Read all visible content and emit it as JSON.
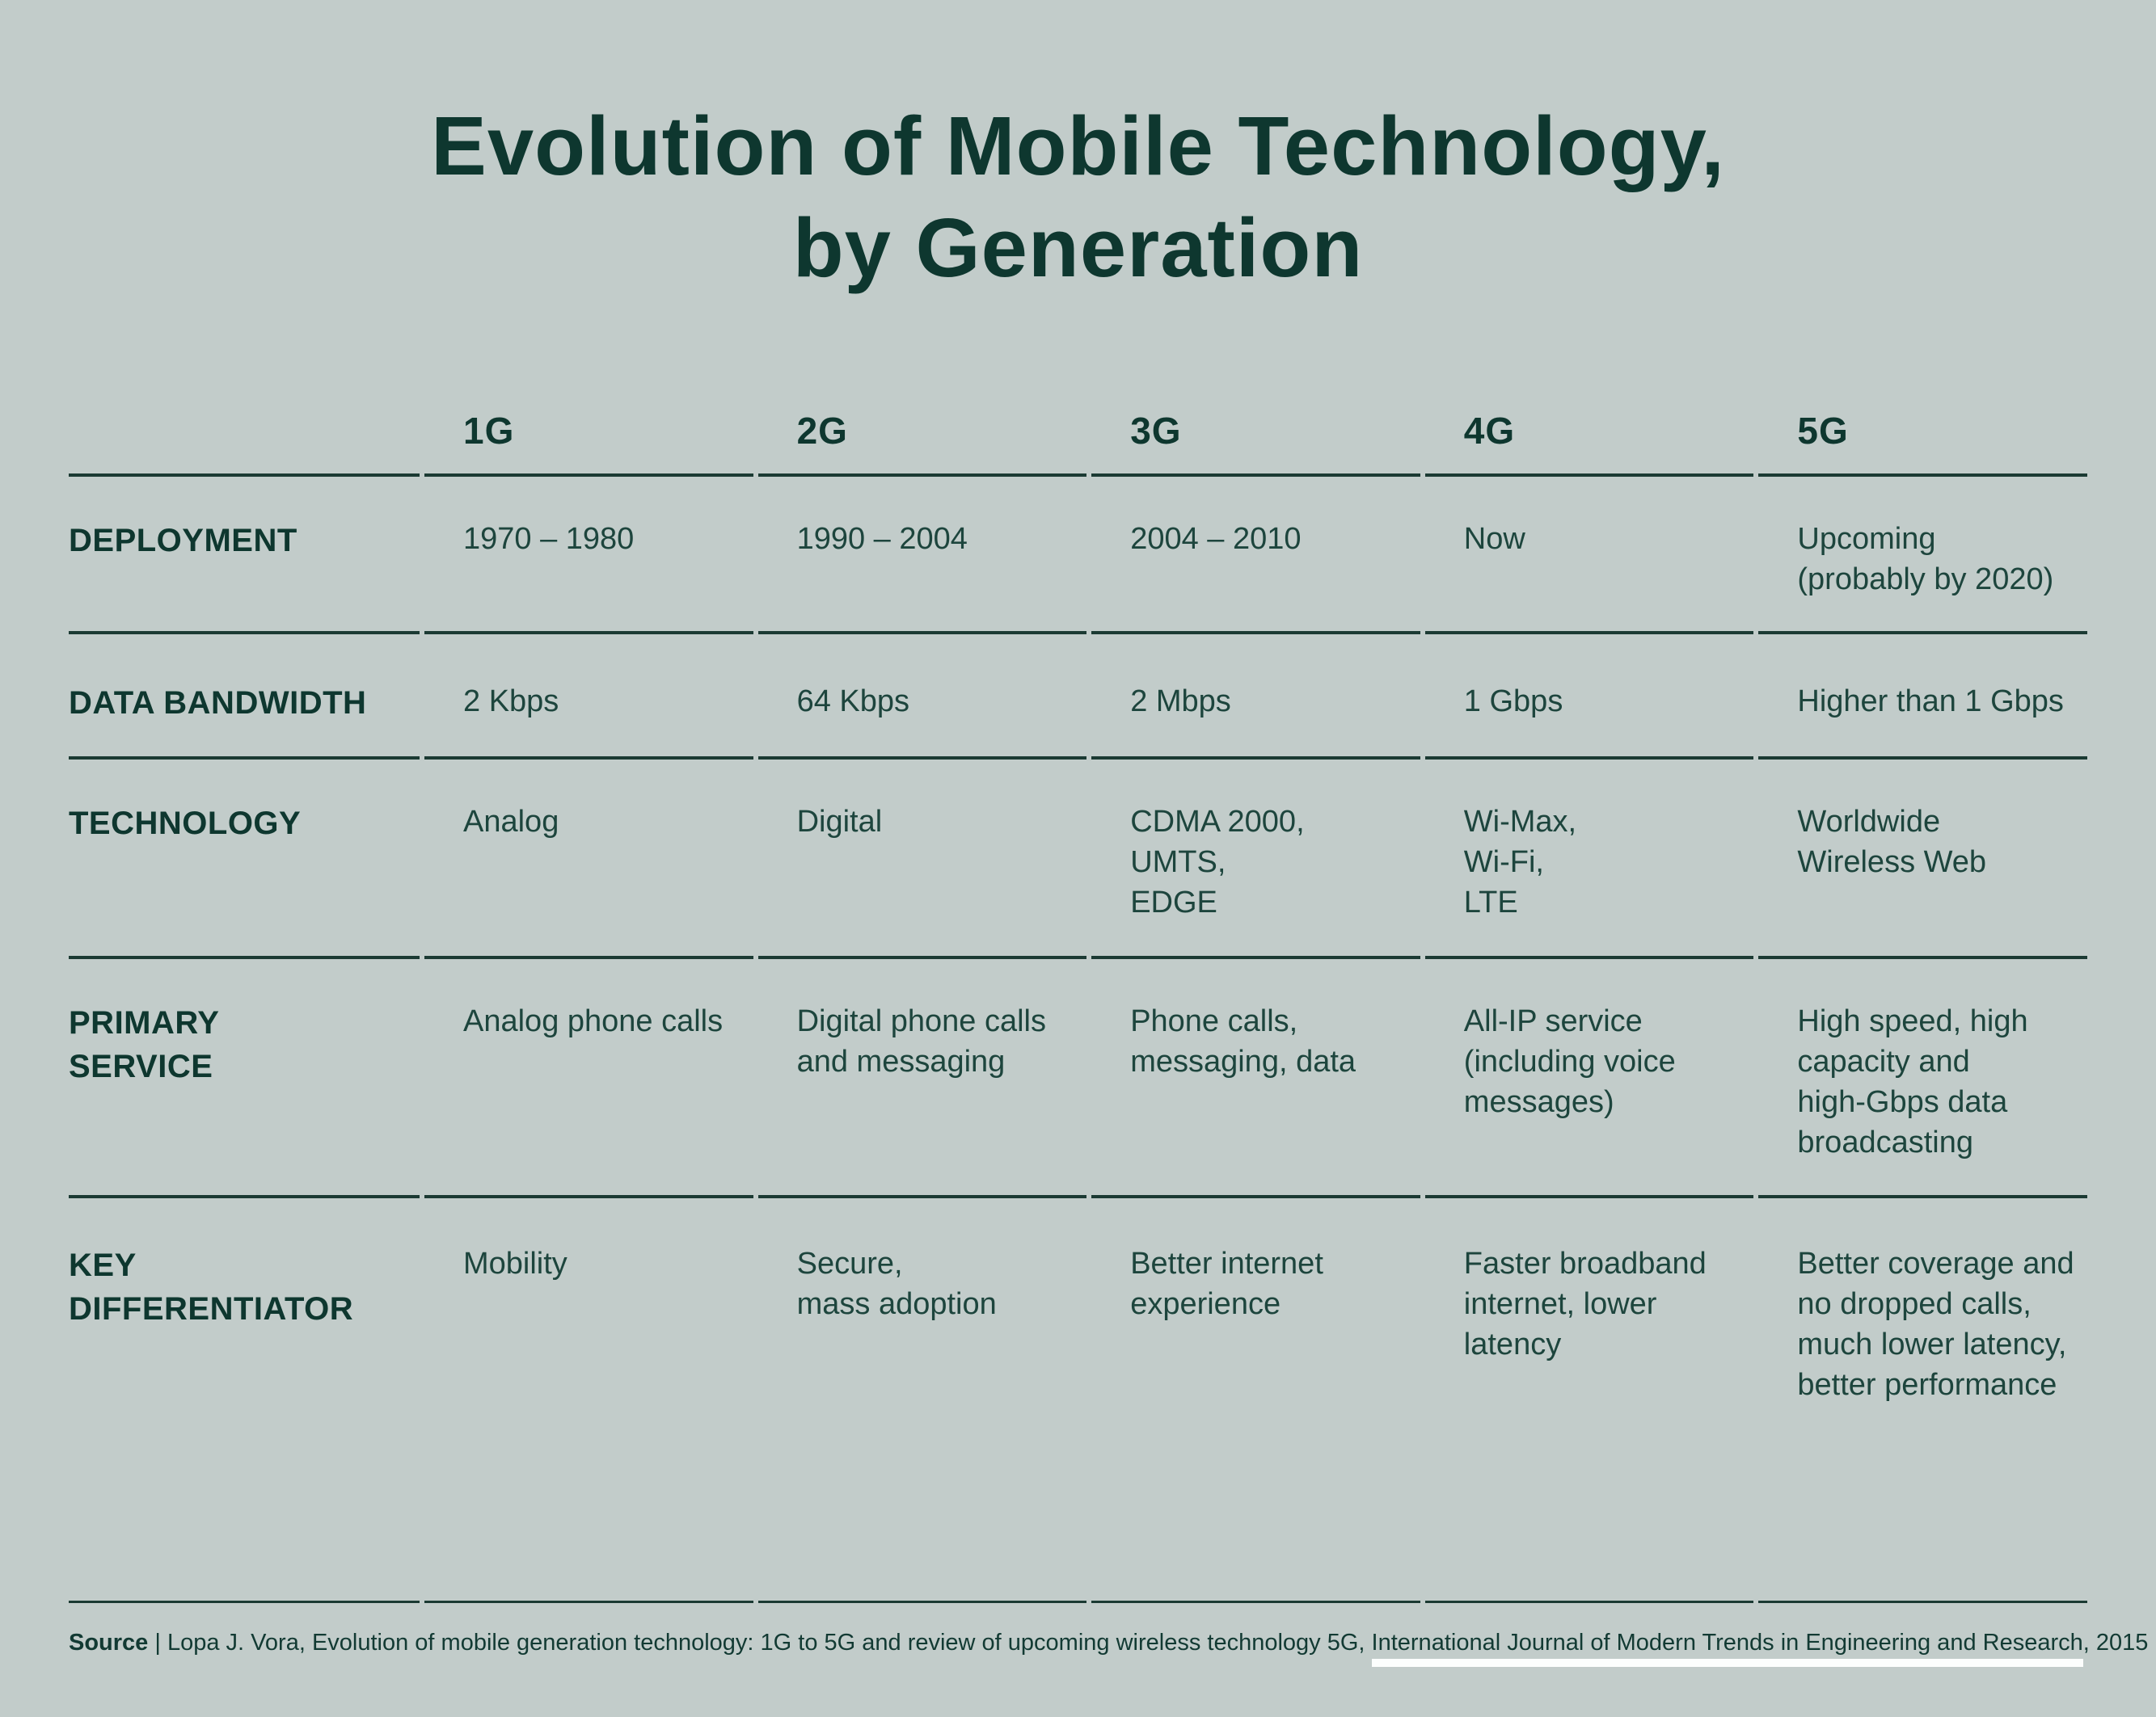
{
  "colors": {
    "background": "#c2ccca",
    "ink_dark": "#0e372f",
    "ink_body": "#1d453d",
    "rule": "#1b3a33",
    "citation_underline": "#fcfefd"
  },
  "chart_data": {
    "type": "table",
    "title": "Evolution of Mobile Technology,\nby Generation",
    "columns": [
      "1G",
      "2G",
      "3G",
      "4G",
      "5G"
    ],
    "rows": [
      {
        "label": "DEPLOYMENT",
        "values": [
          "1970 – 1980",
          "1990 – 2004",
          "2004 – 2010",
          "Now",
          "Upcoming\n(probably by 2020)"
        ]
      },
      {
        "label": "DATA BANDWIDTH",
        "values": [
          "2 Kbps",
          "64 Kbps",
          "2 Mbps",
          "1 Gbps",
          "Higher than 1 Gbps"
        ]
      },
      {
        "label": "TECHNOLOGY",
        "values": [
          "Analog",
          "Digital",
          "CDMA 2000,\nUMTS,\nEDGE",
          "Wi-Max,\nWi-Fi,\nLTE",
          "Worldwide\nWireless Web"
        ]
      },
      {
        "label": "PRIMARY\nSERVICE",
        "values": [
          "Analog phone calls",
          "Digital phone calls\nand messaging",
          "Phone calls,\nmessaging, data",
          "All-IP service\n(including voice\nmessages)",
          "High speed, high\ncapacity and\nhigh-Gbps data\nbroadcasting"
        ]
      },
      {
        "label": "KEY\nDIFFERENTIATOR",
        "values": [
          "Mobility",
          "Secure,\nmass adoption",
          "Better internet\nexperience",
          "Faster broadband\ninternet, lower\nlatency",
          "Better coverage and\nno dropped calls,\nmuch lower latency,\nbetter performance"
        ]
      }
    ]
  },
  "source": {
    "label": "Source",
    "sep": " | ",
    "before": "Lopa J. Vora, Evolution of mobile generation technology: 1G to 5G and review of upcoming wireless technology 5G, ",
    "journal": "International Journal of Modern Trends in Engineering and Research",
    "after": ", 2015"
  }
}
